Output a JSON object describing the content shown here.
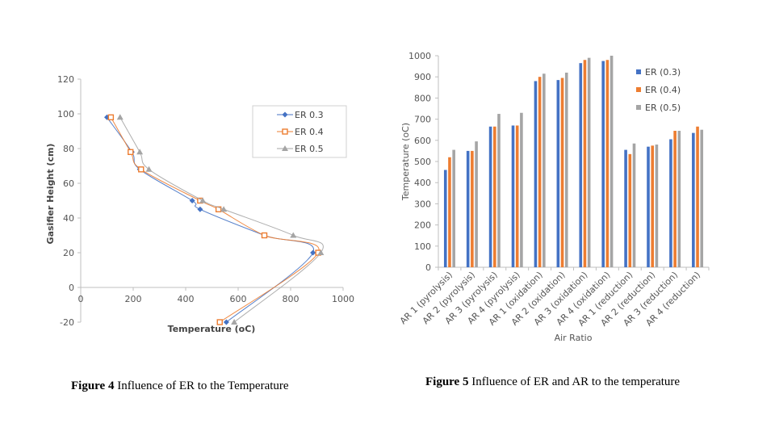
{
  "chart_data": [
    {
      "type": "line",
      "title": "",
      "xlabel": "Temperature (oC)",
      "ylabel": "Gasifier Height (cm)",
      "xlim": [
        0,
        1000
      ],
      "ylim": [
        -20,
        120
      ],
      "xticks": [
        "0",
        "200",
        "400",
        "600",
        "800",
        "1000"
      ],
      "yticks": [
        "-20",
        "0",
        "20",
        "40",
        "60",
        "80",
        "100",
        "120"
      ],
      "legend_position": "top-right",
      "grid": false,
      "series": [
        {
          "name": "ER 0.3",
          "color": "#4472C4",
          "marker": "diamond",
          "points": [
            [
              100,
              98
            ],
            [
              195,
              78
            ],
            [
              225,
              68
            ],
            [
              425,
              50
            ],
            [
              455,
              45
            ],
            [
              700,
              30
            ],
            [
              885,
              20
            ],
            [
              555,
              -20
            ]
          ]
        },
        {
          "name": "ER 0.4",
          "color": "#ED7D31",
          "marker": "square",
          "points": [
            [
              115,
              98
            ],
            [
              190,
              78
            ],
            [
              230,
              68
            ],
            [
              455,
              50
            ],
            [
              525,
              45
            ],
            [
              700,
              30
            ],
            [
              905,
              20
            ],
            [
              530,
              -20
            ]
          ]
        },
        {
          "name": "ER 0.5",
          "color": "#A5A5A5",
          "marker": "triangle",
          "points": [
            [
              150,
              98
            ],
            [
              225,
              78
            ],
            [
              260,
              68
            ],
            [
              465,
              50
            ],
            [
              545,
              45
            ],
            [
              810,
              30
            ],
            [
              915,
              20
            ],
            [
              585,
              -20
            ]
          ]
        }
      ]
    },
    {
      "type": "bar",
      "title": "",
      "xlabel": "Air Ratio",
      "ylabel": "Temperature (oC)",
      "ylim": [
        0,
        1000
      ],
      "yticks": [
        "0",
        "100",
        "200",
        "300",
        "400",
        "500",
        "600",
        "700",
        "800",
        "900",
        "1000"
      ],
      "legend_position": "top-right",
      "grid": false,
      "categories": [
        "AR 1 (pyrolysis)",
        "AR 2 (pyrolysis)",
        "AR 3 (pyrolysis)",
        "AR 4 (pyrolysis)",
        "AR 1 (oxidation)",
        "AR 2 (oxidation)",
        "AR 3 (oxidation)",
        "AR 4 (oxidation)",
        "AR 1 (reduction)",
        "AR 2 (reduction)",
        "AR 3 (reduction)",
        "AR 4 (reduction)"
      ],
      "series": [
        {
          "name": "ER (0.3)",
          "color": "#4472C4",
          "values": [
            460,
            550,
            665,
            670,
            880,
            885,
            965,
            975,
            555,
            570,
            605,
            635
          ]
        },
        {
          "name": "ER (0.4)",
          "color": "#ED7D31",
          "values": [
            520,
            550,
            665,
            670,
            900,
            895,
            980,
            980,
            535,
            575,
            645,
            665
          ]
        },
        {
          "name": "ER (0.5)",
          "color": "#A5A5A5",
          "values": [
            555,
            595,
            725,
            730,
            915,
            920,
            990,
            1000,
            585,
            580,
            645,
            650
          ]
        }
      ]
    }
  ],
  "captions": [
    {
      "label": "Figure 4",
      "text": " Influence of ER to the Temperature"
    },
    {
      "label": "Figure 5",
      "text": " Influence of ER and AR to the temperature"
    }
  ]
}
